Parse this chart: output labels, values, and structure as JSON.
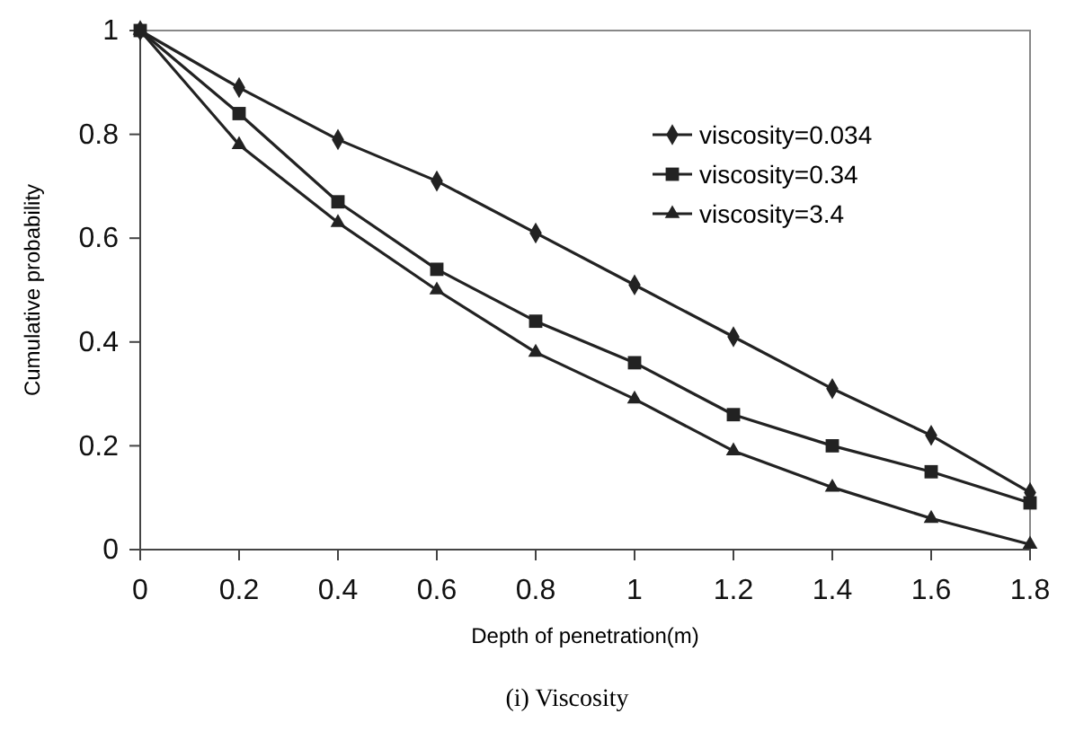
{
  "chart_data": {
    "type": "line",
    "xlabel": "Depth of penetration(m)",
    "ylabel": "Cumulative probability",
    "annotations": [
      "(i) Viscosity"
    ],
    "x": [
      0,
      0.2,
      0.4,
      0.6,
      0.8,
      1,
      1.2,
      1.4,
      1.6,
      1.8
    ],
    "series": [
      {
        "name": "viscosity=0.034",
        "color": "#222222",
        "marker": "diamond",
        "values": [
          1,
          0.89,
          0.79,
          0.71,
          0.61,
          0.51,
          0.41,
          0.31,
          0.22,
          0.11
        ]
      },
      {
        "name": "viscosity=0.34",
        "color": "#222222",
        "marker": "square",
        "values": [
          1,
          0.84,
          0.67,
          0.54,
          0.44,
          0.36,
          0.26,
          0.2,
          0.15,
          0.09
        ]
      },
      {
        "name": "viscosity=3.4",
        "color": "#222222",
        "marker": "triangle",
        "values": [
          1,
          0.78,
          0.63,
          0.5,
          0.38,
          0.29,
          0.19,
          0.12,
          0.06,
          0.01
        ]
      }
    ],
    "xlim": [
      0,
      1.8
    ],
    "xticks": [
      0,
      0.2,
      0.4,
      0.6,
      0.8,
      1,
      1.2,
      1.4,
      1.6,
      1.8
    ],
    "ylim": [
      0,
      1
    ],
    "yticks": [
      0,
      0.2,
      0.4,
      0.6,
      0.8,
      1
    ],
    "grid": false,
    "legend": "top right",
    "line_style": "solid"
  }
}
